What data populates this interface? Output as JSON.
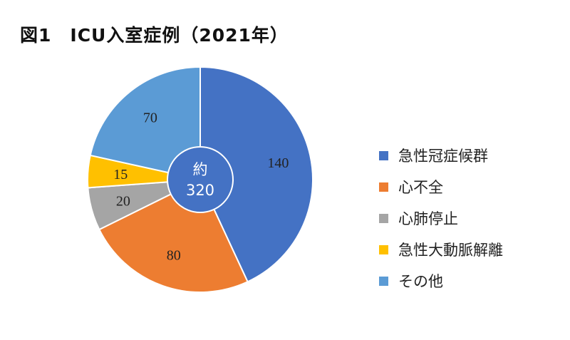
{
  "title": "図1　ICU入室症例（2021年）",
  "center_label": {
    "line1": "約",
    "line2": "320"
  },
  "chart_data": {
    "type": "pie",
    "title": "図1　ICU入室症例（2021年）",
    "categories": [
      "急性冠症候群",
      "心不全",
      "心肺停止",
      "急性大動脈解離",
      "その他"
    ],
    "values": [
      140,
      80,
      20,
      15,
      70
    ],
    "colors": [
      "#4472C4",
      "#ED7D31",
      "#A5A5A5",
      "#FFC000",
      "#5B9BD5"
    ],
    "start_angle_deg": 0,
    "direction": "clockwise",
    "center_label": "約 320",
    "center_color": "#4472C4",
    "legend_position": "right"
  }
}
